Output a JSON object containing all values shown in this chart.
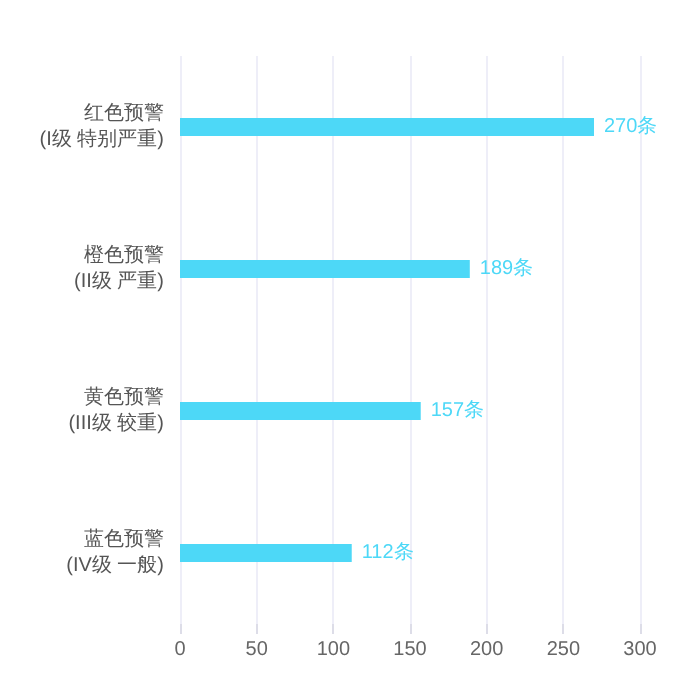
{
  "chart_data": {
    "type": "bar",
    "orientation": "horizontal",
    "categories": [
      "红色预警\n(I级 特别严重)",
      "橙色预警\n(II级 严重)",
      "黄色预警\n(III级 较重)",
      "蓝色预警\n(IV级 一般)"
    ],
    "values": [
      270,
      189,
      157,
      112
    ],
    "color": "#4dd8f7",
    "value_labels": [
      "270条",
      "189条",
      "157条",
      "112条"
    ],
    "xlim": [
      0,
      300
    ],
    "xticks": [
      0,
      50,
      100,
      150,
      200,
      250,
      300
    ],
    "grid": "x"
  }
}
